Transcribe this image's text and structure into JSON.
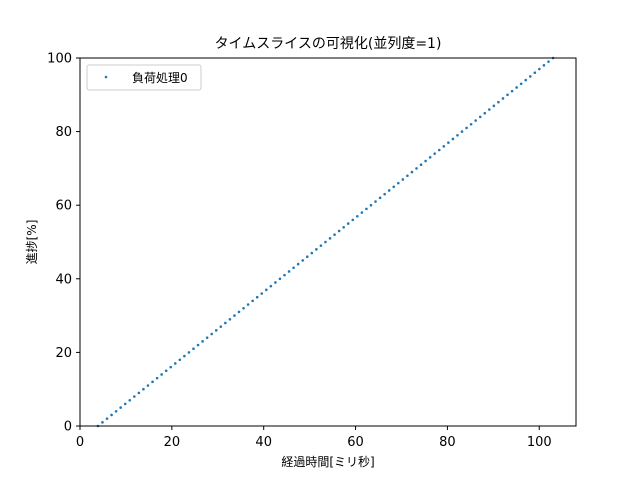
{
  "chart_data": {
    "type": "scatter",
    "title": "タイムスライスの可視化(並列度=1)",
    "xlabel": "経過時間[ミリ秒]",
    "ylabel": "進捗[%]",
    "xlim": [
      0,
      108
    ],
    "ylim": [
      0,
      100
    ],
    "xticks": [
      "0",
      "20",
      "40",
      "60",
      "80",
      "100"
    ],
    "yticks": [
      "0",
      "20",
      "40",
      "60",
      "80",
      "100"
    ],
    "grid": false,
    "legend_position": "upper-left",
    "series": [
      {
        "name": "負荷処理0",
        "color": "#1f77b4",
        "x_start": 3.9,
        "x_end": 103.0,
        "y_start": 0,
        "y_end": 100,
        "point_count": 100
      }
    ]
  }
}
